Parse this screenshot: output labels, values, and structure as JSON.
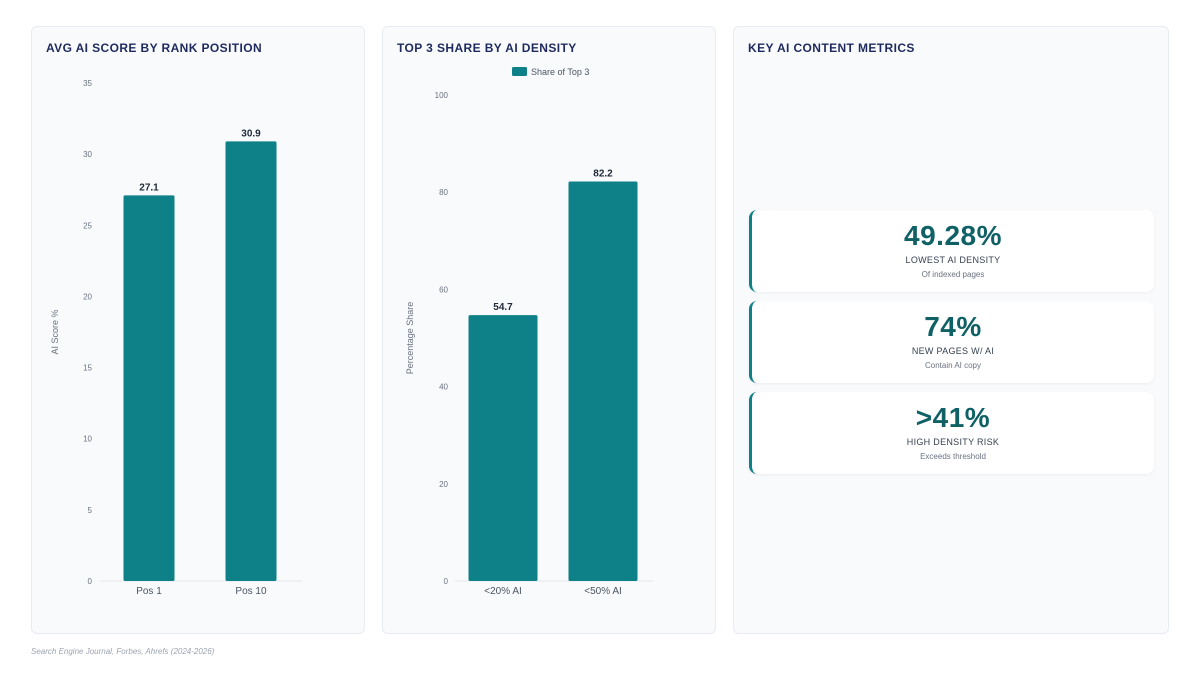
{
  "colors": {
    "bar": "#0e8088",
    "accent": "#0f6166",
    "title": "#1e2a5e"
  },
  "chart_data": [
    {
      "type": "bar",
      "title": "AVG AI SCORE BY RANK POSITION",
      "categories": [
        "Pos 1",
        "Pos 10"
      ],
      "values": [
        27.1,
        30.9
      ],
      "data_labels": [
        "27.1",
        "30.9"
      ],
      "xlabel": "",
      "ylabel": "AI Score %",
      "ylim": [
        0,
        35
      ],
      "yticks": [
        "0",
        "5",
        "10",
        "15",
        "20",
        "25",
        "30",
        "35"
      ],
      "grid": false,
      "legend": null
    },
    {
      "type": "bar",
      "title": "TOP 3 SHARE BY AI DENSITY",
      "categories": [
        "<20% AI",
        "<50% AI"
      ],
      "series": [
        {
          "name": "Share of Top 3",
          "values": [
            54.7,
            82.2
          ]
        }
      ],
      "data_labels": [
        "54.7",
        "82.2"
      ],
      "xlabel": "",
      "ylabel": "Percentage Share",
      "ylim": [
        0,
        100
      ],
      "yticks": [
        "0",
        "20",
        "40",
        "60",
        "80",
        "100"
      ],
      "grid": false,
      "legend": "top-center"
    }
  ],
  "metrics": {
    "title": "KEY AI CONTENT METRICS",
    "items": [
      {
        "value": "49.28%",
        "label": "LOWEST AI DENSITY",
        "sub": "Of indexed pages"
      },
      {
        "value": "74%",
        "label": "NEW PAGES W/ AI",
        "sub": "Contain AI copy"
      },
      {
        "value": ">41%",
        "label": "HIGH DENSITY RISK",
        "sub": "Exceeds threshold"
      }
    ]
  },
  "footer": "Search Engine Journal, Forbes, Ahrefs (2024-2026)"
}
